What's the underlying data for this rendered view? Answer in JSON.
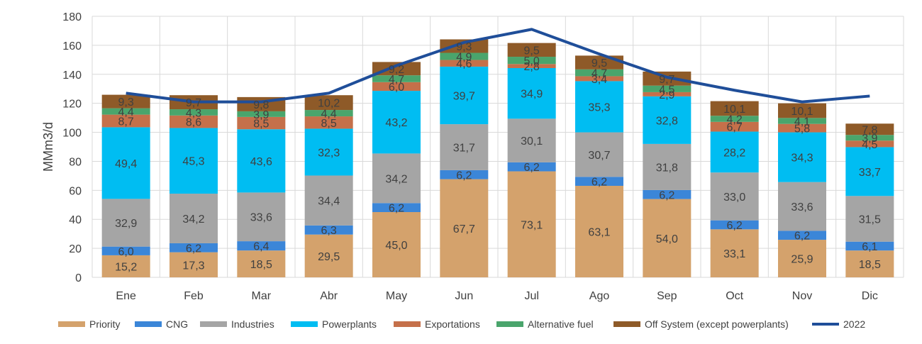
{
  "chart_data": {
    "type": "bar",
    "stacked": true,
    "ylabel": "MMm3/d",
    "ylim": [
      0,
      180
    ],
    "yticks": [
      0,
      20,
      40,
      60,
      80,
      100,
      120,
      140,
      160,
      180
    ],
    "grid": true,
    "legend_position": "bottom",
    "categories": [
      "Ene",
      "Feb",
      "Mar",
      "Abr",
      "May",
      "Jun",
      "Jul",
      "Ago",
      "Sep",
      "Oct",
      "Nov",
      "Dic"
    ],
    "series": [
      {
        "name": "Priority",
        "color": "#d4a26c",
        "values": [
          15.2,
          17.3,
          18.5,
          29.5,
          45.0,
          67.7,
          73.1,
          63.1,
          54.0,
          33.1,
          25.9,
          18.5
        ],
        "labels": [
          "15,2",
          "17,3",
          "18,5",
          "29,5",
          "45,0",
          "67,7",
          "73,1",
          "63,1",
          "54,0",
          "33,1",
          "25,9",
          "18,5"
        ]
      },
      {
        "name": "CNG",
        "color": "#3b86d8",
        "values": [
          6.0,
          6.2,
          6.4,
          6.3,
          6.2,
          6.2,
          6.2,
          6.2,
          6.2,
          6.2,
          6.2,
          6.1
        ],
        "labels": [
          "6,0",
          "6,2",
          "6,4",
          "6,3",
          "6,2",
          "6,2",
          "6,2",
          "6,2",
          "6,2",
          "6,2",
          "6,2",
          "6,1"
        ]
      },
      {
        "name": "Industries",
        "color": "#a5a5a5",
        "values": [
          32.9,
          34.2,
          33.6,
          34.4,
          34.2,
          31.7,
          30.1,
          30.7,
          31.8,
          33.0,
          33.6,
          31.5
        ],
        "labels": [
          "32,9",
          "34,2",
          "33,6",
          "34,4",
          "34,2",
          "31,7",
          "30,1",
          "30,7",
          "31,8",
          "33,0",
          "33,6",
          "31,5"
        ]
      },
      {
        "name": "Powerplants",
        "color": "#00bdf2",
        "values": [
          49.4,
          45.3,
          43.6,
          32.3,
          43.2,
          39.7,
          34.9,
          35.3,
          32.8,
          28.2,
          34.3,
          33.7
        ],
        "labels": [
          "49,4",
          "45,3",
          "43,6",
          "32,3",
          "43,2",
          "39,7",
          "34,9",
          "35,3",
          "32,8",
          "28,2",
          "34,3",
          "33,7"
        ]
      },
      {
        "name": "Exportations",
        "color": "#c5704a",
        "values": [
          8.7,
          8.6,
          8.5,
          8.5,
          6.0,
          4.6,
          2.8,
          3.4,
          2.9,
          6.7,
          5.8,
          4.5
        ],
        "labels": [
          "8,7",
          "8,6",
          "8,5",
          "8,5",
          "6,0",
          "4,6",
          "2,8",
          "3,4",
          "2,9",
          "6,7",
          "5,8",
          "4,5"
        ]
      },
      {
        "name": "Alternative fuel",
        "color": "#4aa56c",
        "values": [
          4.4,
          4.3,
          3.9,
          4.4,
          4.7,
          4.9,
          5.0,
          4.7,
          4.5,
          4.2,
          4.1,
          3.9
        ],
        "labels": [
          "4,4",
          "4,3",
          "3,9",
          "4,4",
          "4,7",
          "4,9",
          "5,0",
          "4,7",
          "4,5",
          "4,2",
          "4,1",
          "3,9"
        ]
      },
      {
        "name": "Off System (except powerplants)",
        "color": "#8e5a28",
        "values": [
          9.3,
          9.7,
          9.8,
          10.2,
          9.2,
          9.3,
          9.5,
          9.5,
          9.7,
          10.1,
          10.1,
          7.8
        ],
        "labels": [
          "9,3",
          "9,7",
          "9,8",
          "10,2",
          "9,2",
          "9,3",
          "9,5",
          "9,5",
          "9,7",
          "10,1",
          "10,1",
          "7,8"
        ]
      }
    ],
    "line_series": {
      "name": "2022",
      "color": "#1f4e99",
      "values": [
        127,
        121,
        121,
        127,
        146,
        162,
        171,
        154,
        138,
        129,
        121,
        125
      ]
    }
  }
}
